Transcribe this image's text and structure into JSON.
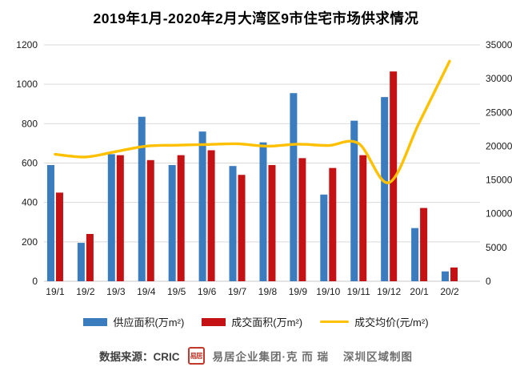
{
  "title": "2019年1月-2020年2月大湾区9市住宅市场供求情况",
  "chart_data": {
    "type": "bar",
    "title": "2019年1月-2020年2月大湾区9市住宅市场供求情况",
    "categories": [
      "19/1",
      "19/2",
      "19/3",
      "19/4",
      "19/5",
      "19/6",
      "19/7",
      "19/8",
      "19/9",
      "19/10",
      "19/11",
      "19/12",
      "20/1",
      "20/2"
    ],
    "series": [
      {
        "name": "供应面积(万m²)",
        "type": "bar",
        "axis": "left",
        "color": "#3a7cbe",
        "values": [
          590,
          195,
          645,
          835,
          590,
          760,
          585,
          705,
          955,
          440,
          815,
          935,
          270,
          50
        ]
      },
      {
        "name": "成交面积(万m²)",
        "type": "bar",
        "axis": "left",
        "color": "#c41114",
        "values": [
          450,
          240,
          640,
          615,
          640,
          665,
          540,
          590,
          625,
          575,
          640,
          1065,
          372,
          70
        ]
      },
      {
        "name": "成交均价(元/m²)",
        "type": "line",
        "axis": "right",
        "color": "#ffc000",
        "values": [
          18800,
          18400,
          19200,
          20000,
          20150,
          20250,
          20350,
          20000,
          20300,
          20100,
          20400,
          14600,
          23500,
          32600
        ]
      }
    ],
    "left_axis": {
      "label": "",
      "min": 0,
      "max": 1200,
      "step": 200,
      "ticks": [
        0,
        200,
        400,
        600,
        800,
        1000,
        1200
      ]
    },
    "right_axis": {
      "label": "",
      "min": 0,
      "max": 35000,
      "step": 5000,
      "ticks": [
        0,
        5000,
        10000,
        15000,
        20000,
        25000,
        30000,
        35000
      ]
    },
    "grid": true,
    "legend_position": "bottom",
    "xlabel": "",
    "ylabel": ""
  },
  "legend": {
    "supply_label": "供应面积(万m²)",
    "sold_label": "成交面积(万m²)",
    "price_label": "成交均价(元/m²)"
  },
  "footer": {
    "source_label": "数据来源：CRIC",
    "seal_text": "易居",
    "brand_text": "易居企业集团·克 而 瑞",
    "region_text": "深圳区域制图"
  },
  "colors": {
    "supply_bar": "#3a7cbe",
    "sold_bar": "#c41114",
    "price_line": "#ffc000",
    "gridline": "#d9d9d9",
    "axis_text": "#1a1a1a",
    "seal_red": "#c2392b"
  }
}
